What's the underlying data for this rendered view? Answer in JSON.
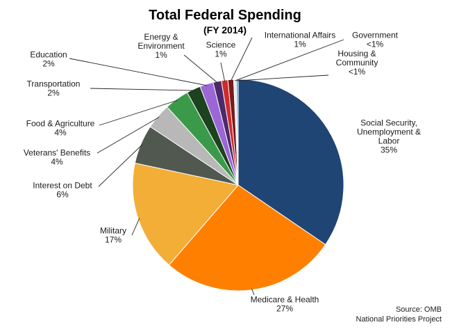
{
  "chart_data": {
    "type": "pie",
    "title": "Total Federal Spending",
    "subtitle": "(FY 2014)",
    "source_lines": [
      "Source: OMB",
      "National Priorities Project"
    ],
    "slices": [
      {
        "name": "Social Security, Unemployment & Labor",
        "label_lines": [
          "Social Security,",
          "Unemployment  &",
          "Labor"
        ],
        "pct_text": "35%",
        "value": 35.2,
        "color": "#1f4574"
      },
      {
        "name": "Medicare & Health",
        "label_lines": [
          "Medicare  & Health"
        ],
        "pct_text": "27%",
        "value": 27.4,
        "color": "#ff8000"
      },
      {
        "name": "Military",
        "label_lines": [
          "Military"
        ],
        "pct_text": "17%",
        "value": 17.3,
        "color": "#f2ae37"
      },
      {
        "name": "Interest on Debt",
        "label_lines": [
          "Interest on Debt"
        ],
        "pct_text": "6%",
        "value": 6.1,
        "color": "#505850"
      },
      {
        "name": "Veterans' Benefits",
        "label_lines": [
          "Veterans'  Benefits"
        ],
        "pct_text": "4%",
        "value": 4.0,
        "color": "#b8b8b8"
      },
      {
        "name": "Food & Agriculture",
        "label_lines": [
          "Food  & Agriculture"
        ],
        "pct_text": "4%",
        "value": 3.8,
        "color": "#3b9a4a"
      },
      {
        "name": "Transportation",
        "label_lines": [
          "Transportation"
        ],
        "pct_text": "2%",
        "value": 2.2,
        "color": "#1c4220"
      },
      {
        "name": "Education",
        "label_lines": [
          "Education"
        ],
        "pct_text": "2%",
        "value": 2.1,
        "color": "#9b66d6"
      },
      {
        "name": "Energy & Environment",
        "label_lines": [
          "Energy  &",
          "Environment"
        ],
        "pct_text": "1%",
        "value": 1.3,
        "color": "#4b2a6b"
      },
      {
        "name": "Science",
        "label_lines": [
          "Science"
        ],
        "pct_text": "1%",
        "value": 1.0,
        "color": "#d12a2a"
      },
      {
        "name": "International Affairs",
        "label_lines": [
          "International  Affairs"
        ],
        "pct_text": "1%",
        "value": 0.9,
        "color": "#7a1a1a"
      },
      {
        "name": "Government",
        "label_lines": [
          "Government"
        ],
        "pct_text": "<1%",
        "value": 0.4,
        "color": "#e9e9e9"
      },
      {
        "name": "Housing & Community",
        "label_lines": [
          "Housing  &",
          "Community"
        ],
        "pct_text": "<1%",
        "value": 0.3,
        "color": "#4aa3e0"
      }
    ]
  }
}
